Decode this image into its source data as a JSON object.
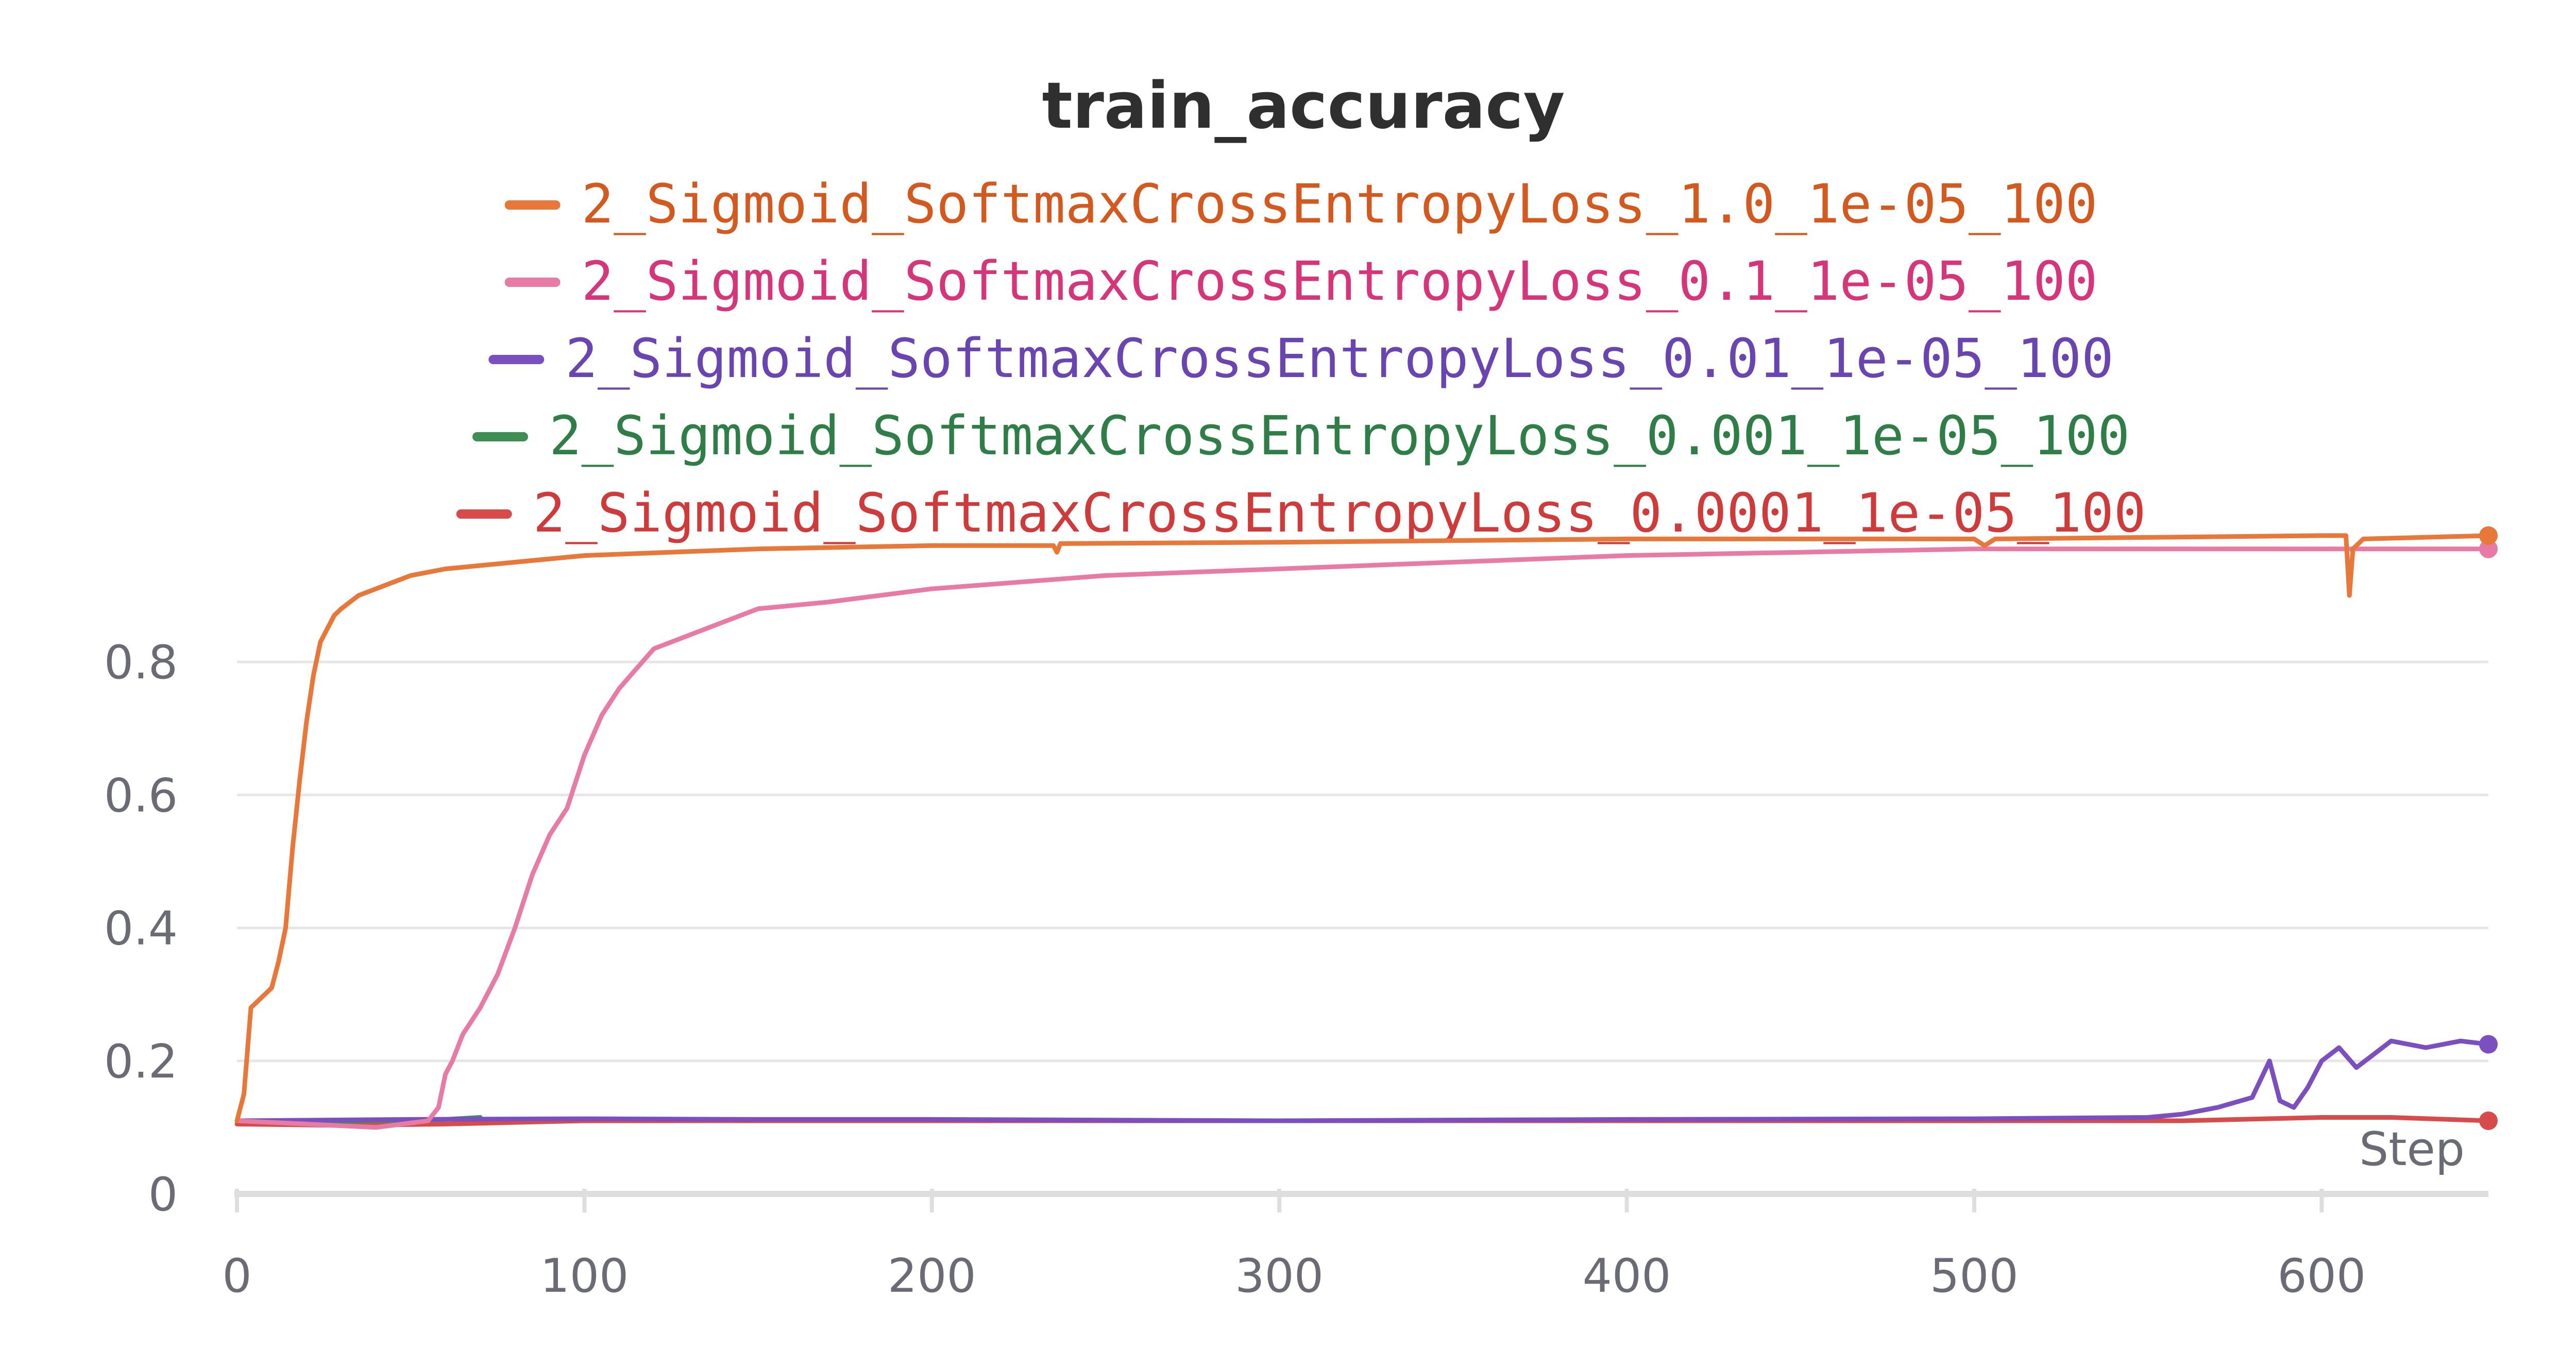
{
  "chart_data": {
    "type": "line",
    "title": "train_accuracy",
    "xlabel": "Step",
    "ylabel": "",
    "xlim": [
      0,
      648
    ],
    "ylim": [
      0,
      1.0
    ],
    "x_ticks": [
      0,
      100,
      200,
      300,
      400,
      500,
      600
    ],
    "y_ticks": [
      0,
      0.2,
      0.4,
      0.6,
      0.8
    ],
    "x_tick_labels": [
      "0",
      "100",
      "200",
      "300",
      "400",
      "500",
      "600"
    ],
    "y_tick_labels": [
      "0",
      "0.2",
      "0.4",
      "0.6",
      "0.8"
    ],
    "grid": true,
    "legend_position": "top",
    "series": [
      {
        "name": "2_Sigmoid_SoftmaxCrossEntropyLoss_1.0_1e-05_100",
        "color": "#e8773a",
        "text_color": "#d4591f",
        "end_marker": true,
        "points": [
          [
            0,
            0.11
          ],
          [
            2,
            0.15
          ],
          [
            4,
            0.28
          ],
          [
            6,
            0.29
          ],
          [
            8,
            0.3
          ],
          [
            10,
            0.31
          ],
          [
            12,
            0.35
          ],
          [
            14,
            0.4
          ],
          [
            16,
            0.52
          ],
          [
            18,
            0.62
          ],
          [
            20,
            0.71
          ],
          [
            22,
            0.78
          ],
          [
            24,
            0.83
          ],
          [
            26,
            0.85
          ],
          [
            28,
            0.87
          ],
          [
            30,
            0.88
          ],
          [
            35,
            0.9
          ],
          [
            40,
            0.91
          ],
          [
            50,
            0.93
          ],
          [
            60,
            0.94
          ],
          [
            80,
            0.95
          ],
          [
            100,
            0.96
          ],
          [
            150,
            0.97
          ],
          [
            200,
            0.975
          ],
          [
            235,
            0.975
          ],
          [
            236,
            0.965
          ],
          [
            237,
            0.978
          ],
          [
            300,
            0.98
          ],
          [
            400,
            0.985
          ],
          [
            500,
            0.985
          ],
          [
            503,
            0.975
          ],
          [
            506,
            0.985
          ],
          [
            600,
            0.99
          ],
          [
            607,
            0.99
          ],
          [
            608,
            0.9
          ],
          [
            609,
            0.97
          ],
          [
            612,
            0.985
          ],
          [
            648,
            0.99
          ]
        ]
      },
      {
        "name": "2_Sigmoid_SoftmaxCrossEntropyLoss_0.1_1e-05_100",
        "color": "#e87ba6",
        "text_color": "#d6357a",
        "end_marker": true,
        "points": [
          [
            0,
            0.11
          ],
          [
            20,
            0.105
          ],
          [
            40,
            0.1
          ],
          [
            55,
            0.11
          ],
          [
            58,
            0.13
          ],
          [
            60,
            0.18
          ],
          [
            62,
            0.2
          ],
          [
            65,
            0.24
          ],
          [
            70,
            0.28
          ],
          [
            75,
            0.33
          ],
          [
            80,
            0.4
          ],
          [
            85,
            0.48
          ],
          [
            90,
            0.54
          ],
          [
            95,
            0.58
          ],
          [
            100,
            0.66
          ],
          [
            105,
            0.72
          ],
          [
            110,
            0.76
          ],
          [
            115,
            0.79
          ],
          [
            120,
            0.82
          ],
          [
            130,
            0.84
          ],
          [
            140,
            0.86
          ],
          [
            150,
            0.88
          ],
          [
            170,
            0.89
          ],
          [
            200,
            0.91
          ],
          [
            250,
            0.93
          ],
          [
            300,
            0.94
          ],
          [
            350,
            0.95
          ],
          [
            400,
            0.96
          ],
          [
            450,
            0.965
          ],
          [
            500,
            0.97
          ],
          [
            550,
            0.97
          ],
          [
            600,
            0.97
          ],
          [
            648,
            0.97
          ]
        ]
      },
      {
        "name": "2_Sigmoid_SoftmaxCrossEntropyLoss_0.01_1e-05_100",
        "color": "#7b4fc0",
        "text_color": "#6a44b0",
        "end_marker": true,
        "points": [
          [
            0,
            0.11
          ],
          [
            50,
            0.112
          ],
          [
            100,
            0.113
          ],
          [
            150,
            0.112
          ],
          [
            200,
            0.112
          ],
          [
            300,
            0.11
          ],
          [
            400,
            0.112
          ],
          [
            500,
            0.113
          ],
          [
            550,
            0.115
          ],
          [
            560,
            0.12
          ],
          [
            570,
            0.13
          ],
          [
            580,
            0.145
          ],
          [
            585,
            0.2
          ],
          [
            588,
            0.14
          ],
          [
            592,
            0.13
          ],
          [
            596,
            0.16
          ],
          [
            600,
            0.2
          ],
          [
            605,
            0.22
          ],
          [
            610,
            0.19
          ],
          [
            615,
            0.21
          ],
          [
            620,
            0.23
          ],
          [
            630,
            0.22
          ],
          [
            640,
            0.23
          ],
          [
            648,
            0.225
          ]
        ]
      },
      {
        "name": "2_Sigmoid_SoftmaxCrossEntropyLoss_0.001_1e-05_100",
        "color": "#3f8f55",
        "text_color": "#2f7d47",
        "end_marker": false,
        "points": [
          [
            0,
            0.11
          ],
          [
            20,
            0.108
          ],
          [
            40,
            0.11
          ],
          [
            60,
            0.112
          ],
          [
            70,
            0.115
          ]
        ]
      },
      {
        "name": "2_Sigmoid_SoftmaxCrossEntropyLoss_0.0001_1e-05_100",
        "color": "#d84b4b",
        "text_color": "#cf3a3a",
        "end_marker": true,
        "points": [
          [
            0,
            0.105
          ],
          [
            30,
            0.103
          ],
          [
            60,
            0.105
          ],
          [
            100,
            0.11
          ],
          [
            200,
            0.11
          ],
          [
            300,
            0.11
          ],
          [
            400,
            0.11
          ],
          [
            500,
            0.11
          ],
          [
            560,
            0.11
          ],
          [
            600,
            0.115
          ],
          [
            620,
            0.115
          ],
          [
            648,
            0.11
          ]
        ]
      }
    ]
  }
}
